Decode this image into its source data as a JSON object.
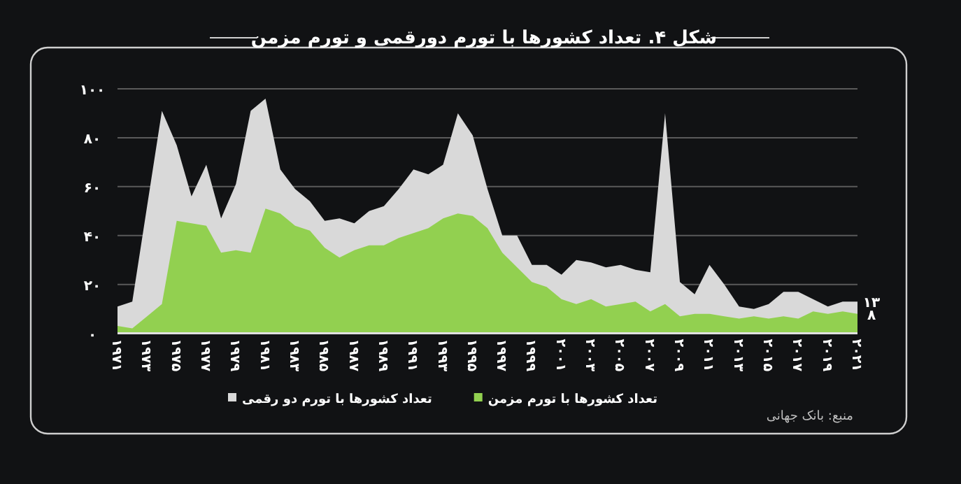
{
  "chart_data": {
    "type": "area",
    "title": "شکل ۴. تعداد کشورها با تورم دورقمی و تورم مزمن",
    "x": [
      1971,
      1972,
      1973,
      1974,
      1975,
      1976,
      1977,
      1978,
      1979,
      1980,
      1981,
      1982,
      1983,
      1984,
      1985,
      1986,
      1987,
      1988,
      1989,
      1990,
      1991,
      1992,
      1993,
      1994,
      1995,
      1996,
      1997,
      1998,
      1999,
      2000,
      2001,
      2002,
      2003,
      2004,
      2005,
      2006,
      2007,
      2008,
      2009,
      2010,
      2011,
      2012,
      2013,
      2014,
      2015,
      2016,
      2017,
      2018,
      2019,
      2020,
      2021
    ],
    "xlim": [
      1971,
      2021
    ],
    "xticks": [
      {
        "value": 1971,
        "label": "۱۹۷۱"
      },
      {
        "value": 1973,
        "label": "۱۹۷۳"
      },
      {
        "value": 1975,
        "label": "۱۹۷۵"
      },
      {
        "value": 1977,
        "label": "۱۹۷۷"
      },
      {
        "value": 1979,
        "label": "۱۹۷۹"
      },
      {
        "value": 1981,
        "label": "۱۹۸۱"
      },
      {
        "value": 1983,
        "label": "۱۹۸۳"
      },
      {
        "value": 1985,
        "label": "۱۹۸۵"
      },
      {
        "value": 1987,
        "label": "۱۹۸۷"
      },
      {
        "value": 1989,
        "label": "۱۹۸۹"
      },
      {
        "value": 1991,
        "label": "۱۹۹۱"
      },
      {
        "value": 1993,
        "label": "۱۹۹۳"
      },
      {
        "value": 1995,
        "label": "۱۹۹۵"
      },
      {
        "value": 1997,
        "label": "۱۹۹۷"
      },
      {
        "value": 1999,
        "label": "۱۹۹۹"
      },
      {
        "value": 2001,
        "label": "۲۰۰۱"
      },
      {
        "value": 2003,
        "label": "۲۰۰۳"
      },
      {
        "value": 2005,
        "label": "۲۰۰۵"
      },
      {
        "value": 2007,
        "label": "۲۰۰۷"
      },
      {
        "value": 2009,
        "label": "۲۰۰۹"
      },
      {
        "value": 2011,
        "label": "۲۰۱۱"
      },
      {
        "value": 2013,
        "label": "۲۰۱۳"
      },
      {
        "value": 2015,
        "label": "۲۰۱۵"
      },
      {
        "value": 2017,
        "label": "۲۰۱۷"
      },
      {
        "value": 2019,
        "label": "۲۰۱۹"
      },
      {
        "value": 2021,
        "label": "۲۰۲۱"
      }
    ],
    "ylim": [
      0,
      100
    ],
    "yticks": [
      {
        "value": 0,
        "label": "۰"
      },
      {
        "value": 20,
        "label": "۲۰"
      },
      {
        "value": 40,
        "label": "۴۰"
      },
      {
        "value": 60,
        "label": "۶۰"
      },
      {
        "value": 80,
        "label": "۸۰"
      },
      {
        "value": 100,
        "label": "۱۰۰"
      }
    ],
    "grid": "y",
    "legend": "bottom",
    "series": [
      {
        "name": "تعداد کشورها با تورم دو رقمی",
        "color": "#d9d9d9",
        "values": [
          11,
          13,
          52,
          91,
          77,
          56,
          69,
          47,
          61,
          91,
          96,
          67,
          59,
          54,
          46,
          47,
          45,
          50,
          52,
          59,
          67,
          65,
          69,
          90,
          81,
          59,
          40,
          40,
          28,
          28,
          24,
          30,
          29,
          27,
          28,
          26,
          25,
          90,
          21,
          16,
          28,
          20,
          11,
          10,
          12,
          17,
          17,
          14,
          11,
          13,
          13
        ],
        "value_labels": [
          null,
          null,
          null,
          null,
          null,
          null,
          null,
          null,
          null,
          null,
          null,
          null,
          null,
          null,
          null,
          null,
          null,
          null,
          null,
          null,
          null,
          null,
          null,
          null,
          null,
          null,
          null,
          null,
          null,
          null,
          null,
          null,
          null,
          null,
          null,
          null,
          null,
          null,
          null,
          null,
          null,
          null,
          null,
          null,
          null,
          null,
          null,
          null,
          null,
          null,
          "۱۳"
        ]
      },
      {
        "name": "تعداد کشورها با تورم مزمن",
        "color": "#92d050",
        "values": [
          3,
          2,
          7,
          12,
          46,
          45,
          44,
          33,
          34,
          33,
          51,
          49,
          44,
          42,
          35,
          31,
          34,
          36,
          36,
          39,
          41,
          43,
          47,
          49,
          48,
          43,
          33,
          27,
          21,
          19,
          14,
          12,
          14,
          11,
          12,
          13,
          9,
          12,
          7,
          8,
          8,
          7,
          6,
          7,
          6,
          7,
          6,
          9,
          8,
          9,
          8
        ],
        "value_labels": [
          null,
          null,
          null,
          null,
          null,
          null,
          null,
          null,
          null,
          null,
          null,
          null,
          null,
          null,
          null,
          null,
          null,
          null,
          null,
          null,
          null,
          null,
          null,
          null,
          null,
          null,
          null,
          null,
          null,
          null,
          null,
          null,
          null,
          null,
          null,
          null,
          null,
          null,
          null,
          null,
          null,
          null,
          null,
          null,
          null,
          null,
          null,
          null,
          null,
          null,
          "۸"
        ]
      }
    ],
    "annotations": [
      "منبع: بانک جهانی"
    ]
  }
}
